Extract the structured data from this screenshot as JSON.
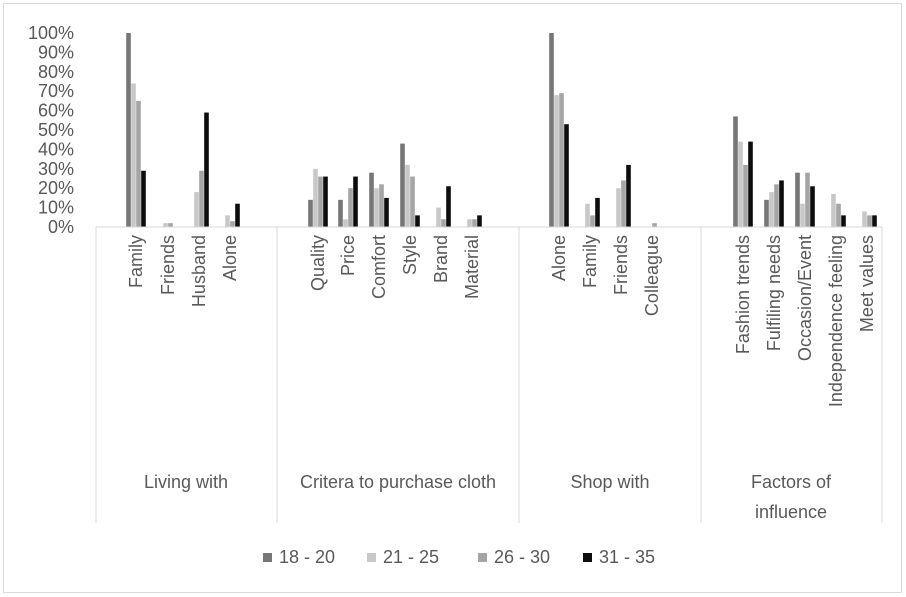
{
  "chart_data": {
    "type": "bar",
    "title": "",
    "xlabel": "",
    "ylabel": "",
    "ylim": [
      0,
      100
    ],
    "y_ticks": [
      "0%",
      "10%",
      "20%",
      "30%",
      "40%",
      "50%",
      "60%",
      "70%",
      "80%",
      "90%",
      "100%"
    ],
    "grid": false,
    "legend_position": "bottom",
    "groups": [
      {
        "label": "Living with",
        "categories": [
          "Family",
          "Friends",
          "Husband",
          "Alone"
        ]
      },
      {
        "label": "Critera to purchase cloth",
        "categories": [
          "Quality",
          "Price",
          "Comfort",
          "Style",
          "Brand",
          "Material"
        ]
      },
      {
        "label": "Shop with",
        "categories": [
          "Alone",
          "Family",
          "Friends",
          "Colleague"
        ]
      },
      {
        "label": "Factors of influence",
        "categories": [
          "Fashion trends",
          "Fulfiling needs",
          "Occasion/Event",
          "Independence feeling",
          "Meet values"
        ]
      }
    ],
    "categories": [
      "Family",
      "Friends",
      "Husband",
      "Alone",
      "Quality",
      "Price",
      "Comfort",
      "Style",
      "Brand",
      "Material",
      "Alone",
      "Family",
      "Friends",
      "Colleague",
      "Fashion trends",
      "Fulfiling needs",
      "Occasion/Event",
      "Independence feeling",
      "Meet values"
    ],
    "series": [
      {
        "name": "18 - 20",
        "color": "#767676",
        "values": [
          100,
          0,
          0,
          0,
          14,
          14,
          28,
          43,
          0,
          0,
          100,
          0,
          0,
          0,
          57,
          14,
          28,
          0,
          0
        ]
      },
      {
        "name": "21 - 25",
        "color": "#c8c8c8",
        "values": [
          74,
          2,
          18,
          6,
          30,
          4,
          20,
          32,
          10,
          4,
          68,
          12,
          20,
          0,
          44,
          18,
          12,
          17,
          8
        ]
      },
      {
        "name": "26 - 30",
        "color": "#a5a5a5",
        "values": [
          65,
          2,
          29,
          3,
          26,
          20,
          22,
          26,
          4,
          4,
          69,
          6,
          24,
          2,
          32,
          22,
          28,
          12,
          6
        ]
      },
      {
        "name": "31 - 35",
        "color": "#0d0d0d",
        "values": [
          29,
          0,
          59,
          12,
          26,
          26,
          15,
          6,
          21,
          6,
          53,
          15,
          32,
          0,
          44,
          24,
          21,
          6,
          6
        ]
      }
    ]
  }
}
